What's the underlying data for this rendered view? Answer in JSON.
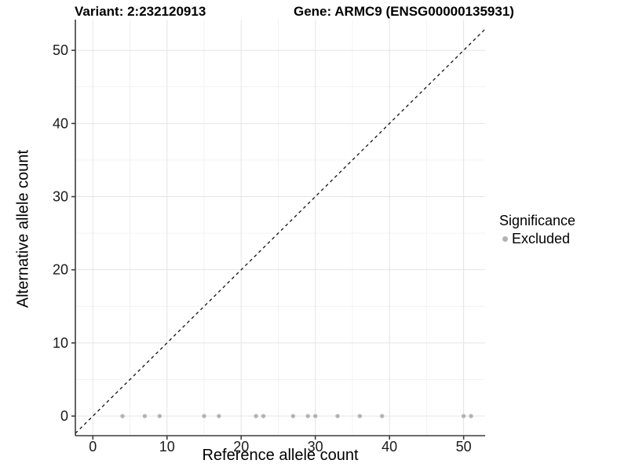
{
  "chart_data": {
    "type": "scatter",
    "title_left": "Variant: 2:232120913",
    "title_right": "Gene: ARMC9 (ENSG00000135931)",
    "xlabel": "Reference allele count",
    "ylabel": "Alternative allele count",
    "xlim": [
      -2.36,
      52.9
    ],
    "ylim": [
      -2.68,
      54.2
    ],
    "x_ticks": [
      0,
      10,
      20,
      30,
      40,
      50
    ],
    "y_ticks": [
      0,
      10,
      20,
      30,
      40,
      50
    ],
    "x_minor_ticks": [
      5,
      15,
      25,
      35,
      45
    ],
    "y_minor_ticks": [
      5,
      15,
      25,
      35,
      45
    ],
    "grid": true,
    "series": [
      {
        "name": "Excluded",
        "marker": "circle",
        "color": "#b3b3b3",
        "points": [
          [
            4,
            0
          ],
          [
            7,
            0
          ],
          [
            9,
            0
          ],
          [
            15,
            0
          ],
          [
            17,
            0
          ],
          [
            22,
            0
          ],
          [
            23,
            0
          ],
          [
            27,
            0
          ],
          [
            29,
            0
          ],
          [
            30,
            0
          ],
          [
            33,
            0
          ],
          [
            36,
            0
          ],
          [
            39,
            0
          ],
          [
            50,
            0
          ],
          [
            51,
            0
          ]
        ]
      }
    ],
    "reference_line": {
      "slope": 1,
      "intercept": 0,
      "style": "dashed",
      "color": "#111111"
    },
    "legend": {
      "title": "Significance",
      "position": "right",
      "items": [
        {
          "label": "Excluded",
          "color": "#b3b3b3",
          "marker": "circle"
        }
      ]
    },
    "colors": {
      "background": "#ffffff",
      "grid_major": "#e4e4e4",
      "grid_minor": "#f1f1f1",
      "axis_line": "#3d3d3d",
      "tick_text": "#1a1a1a",
      "point": "#b3b3b3"
    }
  }
}
